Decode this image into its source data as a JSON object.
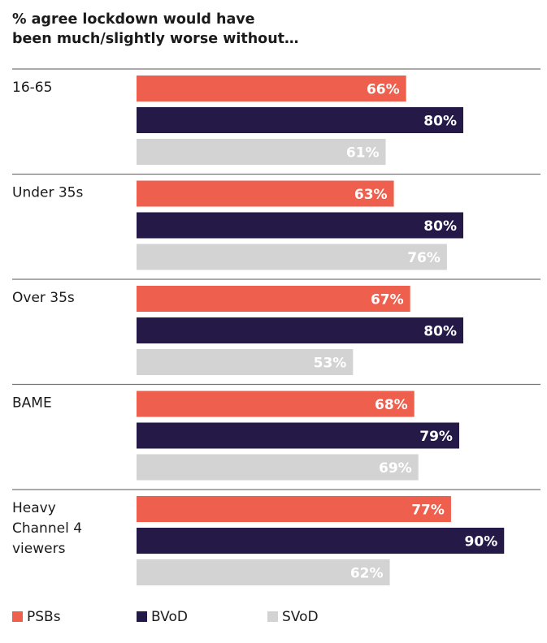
{
  "title_lines": [
    "% agree lockdown would have",
    "been much/slightly worse without…"
  ],
  "colors": {
    "PSBs": "#ee5f4d",
    "BVoD": "#241947",
    "SVoD": "#d3d3d3",
    "divider": "#777777",
    "label_light": "#ffffff"
  },
  "chart_data": {
    "type": "bar",
    "orientation": "horizontal",
    "title": "% agree lockdown would have been much/slightly worse without…",
    "categories": [
      "16-65",
      "Under 35s",
      "Over 35s",
      "BAME",
      "Heavy Channel 4 viewers"
    ],
    "category_lines": [
      [
        "16-65"
      ],
      [
        "Under 35s"
      ],
      [
        "Over 35s"
      ],
      [
        "BAME"
      ],
      [
        "Heavy",
        "Channel 4",
        "viewers"
      ]
    ],
    "series": [
      {
        "name": "PSBs",
        "values": [
          66,
          63,
          67,
          68,
          77
        ],
        "labels": [
          "66%",
          "63%",
          "67%",
          "68%",
          "77%"
        ]
      },
      {
        "name": "BVoD",
        "values": [
          80,
          80,
          80,
          79,
          90
        ],
        "labels": [
          "80%",
          "80%",
          "80%",
          "79%",
          "90%"
        ]
      },
      {
        "name": "SVoD",
        "values": [
          61,
          76,
          53,
          69,
          62
        ],
        "labels": [
          "61%",
          "76%",
          "53%",
          "69%",
          "62%"
        ]
      }
    ],
    "unit": "%",
    "grid": false,
    "legend_position": "bottom-left"
  },
  "legend": [
    {
      "label": "PSBs",
      "color": "#ee5f4d"
    },
    {
      "label": "BVoD",
      "color": "#241947"
    },
    {
      "label": "SVoD",
      "color": "#d3d3d3"
    }
  ]
}
